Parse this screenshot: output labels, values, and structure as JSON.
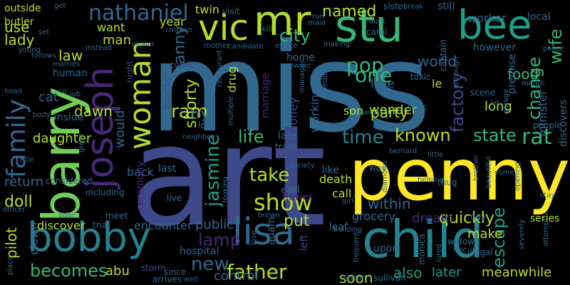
{
  "palette": {
    "yellow": "#fde725",
    "lime": "#b5de2b",
    "green": "#6ece58",
    "seagreen": "#35b779",
    "teal": "#1f9e89",
    "cyan": "#26828e",
    "blue": "#31688e",
    "indigo": "#3e4989",
    "violet": "#482878",
    "purple": "#440154"
  },
  "words": [
    {
      "text": "miss",
      "color": "#31688e"
    },
    {
      "text": "art",
      "color": "#3e4989"
    },
    {
      "text": "penny",
      "color": "#fde725"
    },
    {
      "text": "barry",
      "color": "#6ece58"
    },
    {
      "text": "child",
      "color": "#26828e"
    },
    {
      "text": "stu",
      "color": "#35b779"
    },
    {
      "text": "bee",
      "color": "#1f9e89"
    },
    {
      "text": "joseph",
      "color": "#482878"
    },
    {
      "text": "bobby",
      "color": "#26828e"
    },
    {
      "text": "vic",
      "color": "#b5de2b"
    },
    {
      "text": "mr",
      "color": "#b5de2b"
    },
    {
      "text": "lisa",
      "color": "#31688e"
    },
    {
      "text": "woman",
      "color": "#b5de2b"
    },
    {
      "text": "family",
      "color": "#31688e"
    },
    {
      "text": "nathaniel",
      "color": "#31688e"
    },
    {
      "text": "father",
      "color": "#b5de2b"
    },
    {
      "text": "show",
      "color": "#b5de2b"
    },
    {
      "text": "becomes",
      "color": "#35b779"
    },
    {
      "text": "pop",
      "color": "#35b779"
    },
    {
      "text": "one",
      "color": "#35b779"
    },
    {
      "text": "known",
      "color": "#b5de2b"
    },
    {
      "text": "state",
      "color": "#35b779"
    },
    {
      "text": "rat",
      "color": "#35b779"
    },
    {
      "text": "time",
      "color": "#26828e"
    },
    {
      "text": "new",
      "color": "#31688e"
    },
    {
      "text": "ram",
      "color": "#b5de2b"
    },
    {
      "text": "change",
      "color": "#35b779"
    },
    {
      "text": "wife",
      "color": "#35b779"
    },
    {
      "text": "factory",
      "color": "#3e4989"
    },
    {
      "text": "jasmine",
      "color": "#1f9e89"
    },
    {
      "text": "take",
      "color": "#b5de2b"
    },
    {
      "text": "life",
      "color": "#35b779"
    },
    {
      "text": "escape",
      "color": "#1f9e89"
    },
    {
      "text": "quickly",
      "color": "#b5de2b"
    },
    {
      "text": "city",
      "color": "#35b779"
    },
    {
      "text": "named",
      "color": "#b5de2b"
    },
    {
      "text": "lamp",
      "color": "#482878"
    },
    {
      "text": "shorty",
      "color": "#b5de2b"
    },
    {
      "text": "nanny",
      "color": "#31688e"
    },
    {
      "text": "party",
      "color": "#b5de2b"
    },
    {
      "text": "food",
      "color": "#35b779"
    },
    {
      "text": "world",
      "color": "#31688e"
    },
    {
      "text": "soon",
      "color": "#b5de2b"
    },
    {
      "text": "later",
      "color": "#1f9e89"
    },
    {
      "text": "meanwhile",
      "color": "#b5de2b"
    },
    {
      "text": "also",
      "color": "#1f9e89"
    },
    {
      "text": "within",
      "color": "#31688e"
    },
    {
      "text": "put",
      "color": "#b5de2b"
    },
    {
      "text": "doll",
      "color": "#b5de2b"
    },
    {
      "text": "pilot",
      "color": "#b5de2b"
    },
    {
      "text": "abu",
      "color": "#b5de2b"
    },
    {
      "text": "public",
      "color": "#31688e"
    },
    {
      "text": "control",
      "color": "#31688e"
    },
    {
      "text": "discover",
      "color": "#b5de2b"
    },
    {
      "text": "encounter",
      "color": "#31688e"
    },
    {
      "text": "return",
      "color": "#31688e"
    },
    {
      "text": "law",
      "color": "#b5de2b"
    },
    {
      "text": "use",
      "color": "#b5de2b"
    },
    {
      "text": "lady",
      "color": "#b5de2b"
    },
    {
      "text": "man",
      "color": "#b5de2b"
    },
    {
      "text": "want",
      "color": "#b5de2b"
    },
    {
      "text": "year",
      "color": "#b5de2b"
    },
    {
      "text": "twin",
      "color": "#b5de2b"
    },
    {
      "text": "outside",
      "color": "#b5de2b"
    },
    {
      "text": "butler",
      "color": "#b5de2b"
    },
    {
      "text": "cat",
      "color": "#31688e"
    },
    {
      "text": "dawn",
      "color": "#b5de2b"
    },
    {
      "text": "daughter",
      "color": "#b5de2b"
    },
    {
      "text": "try",
      "color": "#31688e"
    },
    {
      "text": "would",
      "color": "#31688e"
    },
    {
      "text": "drug",
      "color": "#b5de2b"
    },
    {
      "text": "honey",
      "color": "#3e4989"
    },
    {
      "text": "working",
      "color": "#31688e"
    },
    {
      "text": "wonder",
      "color": "#b5de2b"
    },
    {
      "text": "son",
      "color": "#b5de2b"
    },
    {
      "text": "love",
      "color": "#31688e"
    },
    {
      "text": "le",
      "color": "#b5de2b"
    },
    {
      "text": "long",
      "color": "#b5de2b"
    },
    {
      "text": "make",
      "color": "#b5de2b"
    },
    {
      "text": "dream",
      "color": "#482878"
    },
    {
      "text": "grocery",
      "color": "#31688e"
    },
    {
      "text": "call",
      "color": "#b5de2b"
    },
    {
      "text": "death",
      "color": "#b5de2b"
    },
    {
      "text": "like",
      "color": "#31688e"
    },
    {
      "text": "late",
      "color": "#31688e"
    },
    {
      "text": "back",
      "color": "#31688e"
    },
    {
      "text": "last",
      "color": "#31688e"
    },
    {
      "text": "upon",
      "color": "#31688e"
    },
    {
      "text": "series",
      "color": "#b5de2b"
    },
    {
      "text": "minister",
      "color": "#31688e"
    },
    {
      "text": "discovers",
      "color": "#31688e"
    },
    {
      "text": "premise",
      "color": "#31688e"
    },
    {
      "text": "however",
      "color": "#31688e"
    },
    {
      "text": "worker",
      "color": "#31688e"
    },
    {
      "text": "local",
      "color": "#31688e"
    },
    {
      "text": "still",
      "color": "#31688e"
    },
    {
      "text": "hospital",
      "color": "#31688e"
    },
    {
      "text": "adam",
      "color": "#31688e"
    },
    {
      "text": "earl",
      "color": "#31688e"
    },
    {
      "text": "leaf",
      "color": "#31688e"
    },
    {
      "text": "marriage",
      "color": "#482878"
    },
    {
      "text": "human",
      "color": "#31688e"
    },
    {
      "text": "inside",
      "color": "#31688e"
    },
    {
      "text": "home",
      "color": "#31688e"
    },
    {
      "text": "visit",
      "color": "#31688e"
    },
    {
      "text": "clown",
      "color": "#31688e"
    },
    {
      "text": "flower",
      "color": "#482878"
    },
    {
      "text": "ceremony",
      "color": "#482878"
    },
    {
      "text": "night",
      "color": "#3e4989"
    },
    {
      "text": "comic",
      "color": "#3e4989"
    },
    {
      "text": "together",
      "color": "#3e4989"
    },
    {
      "text": "left",
      "color": "#3e4989"
    },
    {
      "text": "storm",
      "color": "#3e4989"
    },
    {
      "text": "including",
      "color": "#31688e"
    },
    {
      "text": "considered",
      "color": "#31688e"
    },
    {
      "text": "live",
      "color": "#31688e"
    },
    {
      "text": "meet",
      "color": "#31688e"
    },
    {
      "text": "trial",
      "color": "#31688e"
    },
    {
      "text": "since",
      "color": "#31688e"
    },
    {
      "text": "arrives",
      "color": "#31688e"
    },
    {
      "text": "sullivan",
      "color": "#31688e"
    },
    {
      "text": "lesson",
      "color": "#31688e"
    },
    {
      "text": "illegal",
      "color": "#31688e"
    },
    {
      "text": "monica",
      "color": "#31688e"
    },
    {
      "text": "widow",
      "color": "#31688e"
    },
    {
      "text": "day",
      "color": "#31688e"
    },
    {
      "text": "eye",
      "color": "#31688e"
    },
    {
      "text": "trade",
      "color": "#31688e"
    },
    {
      "text": "lost",
      "color": "#31688e"
    },
    {
      "text": "society",
      "color": "#31688e"
    },
    {
      "text": "york",
      "color": "#31688e"
    },
    {
      "text": "friend",
      "color": "#31688e"
    },
    {
      "text": "scene",
      "color": "#31688e"
    },
    {
      "text": "people",
      "color": "#31688e"
    },
    {
      "text": "month",
      "color": "#31688e"
    },
    {
      "text": "thug",
      "color": "#31688e"
    },
    {
      "text": "toxic",
      "color": "#31688e"
    },
    {
      "text": "captain",
      "color": "#31688e"
    },
    {
      "text": "sister",
      "color": "#31688e"
    },
    {
      "text": "break",
      "color": "#31688e"
    },
    {
      "text": "making",
      "color": "#31688e"
    },
    {
      "text": "carol",
      "color": "#31688e"
    },
    {
      "text": "aunt",
      "color": "#31688e"
    },
    {
      "text": "run",
      "color": "#31688e"
    },
    {
      "text": "maid",
      "color": "#31688e"
    },
    {
      "text": "kill",
      "color": "#31688e"
    },
    {
      "text": "chicken",
      "color": "#31688e"
    },
    {
      "text": "viewer",
      "color": "#31688e"
    },
    {
      "text": "estate",
      "color": "#31688e"
    },
    {
      "text": "candidate",
      "color": "#31688e"
    },
    {
      "text": "mother",
      "color": "#31688e"
    },
    {
      "text": "get",
      "color": "#31688e"
    },
    {
      "text": "set",
      "color": "#31688e"
    },
    {
      "text": "young",
      "color": "#31688e"
    },
    {
      "text": "follows",
      "color": "#31688e"
    },
    {
      "text": "marries",
      "color": "#31688e"
    },
    {
      "text": "instead",
      "color": "#31688e"
    },
    {
      "text": "co",
      "color": "#31688e"
    },
    {
      "text": "job",
      "color": "#31688e"
    },
    {
      "text": "head",
      "color": "#31688e"
    },
    {
      "text": "body",
      "color": "#31688e"
    },
    {
      "text": "title",
      "color": "#31688e"
    },
    {
      "text": "officer",
      "color": "#31688e"
    },
    {
      "text": "place",
      "color": "#31688e"
    },
    {
      "text": "poor",
      "color": "#31688e"
    },
    {
      "text": "great",
      "color": "#31688e"
    },
    {
      "text": "girl",
      "color": "#31688e"
    },
    {
      "text": "way",
      "color": "#31688e"
    },
    {
      "text": "diamond",
      "color": "#31688e"
    },
    {
      "text": "helping",
      "color": "#31688e"
    },
    {
      "text": "bernard",
      "color": "#31688e"
    },
    {
      "text": "little",
      "color": "#31688e"
    },
    {
      "text": "brother",
      "color": "#31688e"
    },
    {
      "text": "beautiful",
      "color": "#31688e"
    },
    {
      "text": "come",
      "color": "#31688e"
    },
    {
      "text": "opening",
      "color": "#31688e"
    },
    {
      "text": "stay",
      "color": "#31688e"
    },
    {
      "text": "attempt",
      "color": "#31688e"
    },
    {
      "text": "severely",
      "color": "#31688e"
    },
    {
      "text": "lured",
      "color": "#31688e"
    },
    {
      "text": "frequent",
      "color": "#31688e"
    },
    {
      "text": "building",
      "color": "#31688e"
    },
    {
      "text": "using",
      "color": "#31688e"
    },
    {
      "text": "wedding",
      "color": "#31688e"
    },
    {
      "text": "manages",
      "color": "#31688e"
    },
    {
      "text": "owner",
      "color": "#31688e"
    },
    {
      "text": "restaurant",
      "color": "#31688e"
    },
    {
      "text": "multiple",
      "color": "#31688e"
    },
    {
      "text": "neighbor",
      "color": "#31688e"
    },
    {
      "text": "looking",
      "color": "#31688e"
    },
    {
      "text": "brown",
      "color": "#31688e"
    },
    {
      "text": "lose",
      "color": "#31688e"
    },
    {
      "text": "well",
      "color": "#31688e"
    },
    {
      "text": "garage",
      "color": "#31688e"
    },
    {
      "text": "police",
      "color": "#31688e"
    },
    {
      "text": "although",
      "color": "#31688e"
    },
    {
      "text": "let",
      "color": "#31688e"
    }
  ]
}
